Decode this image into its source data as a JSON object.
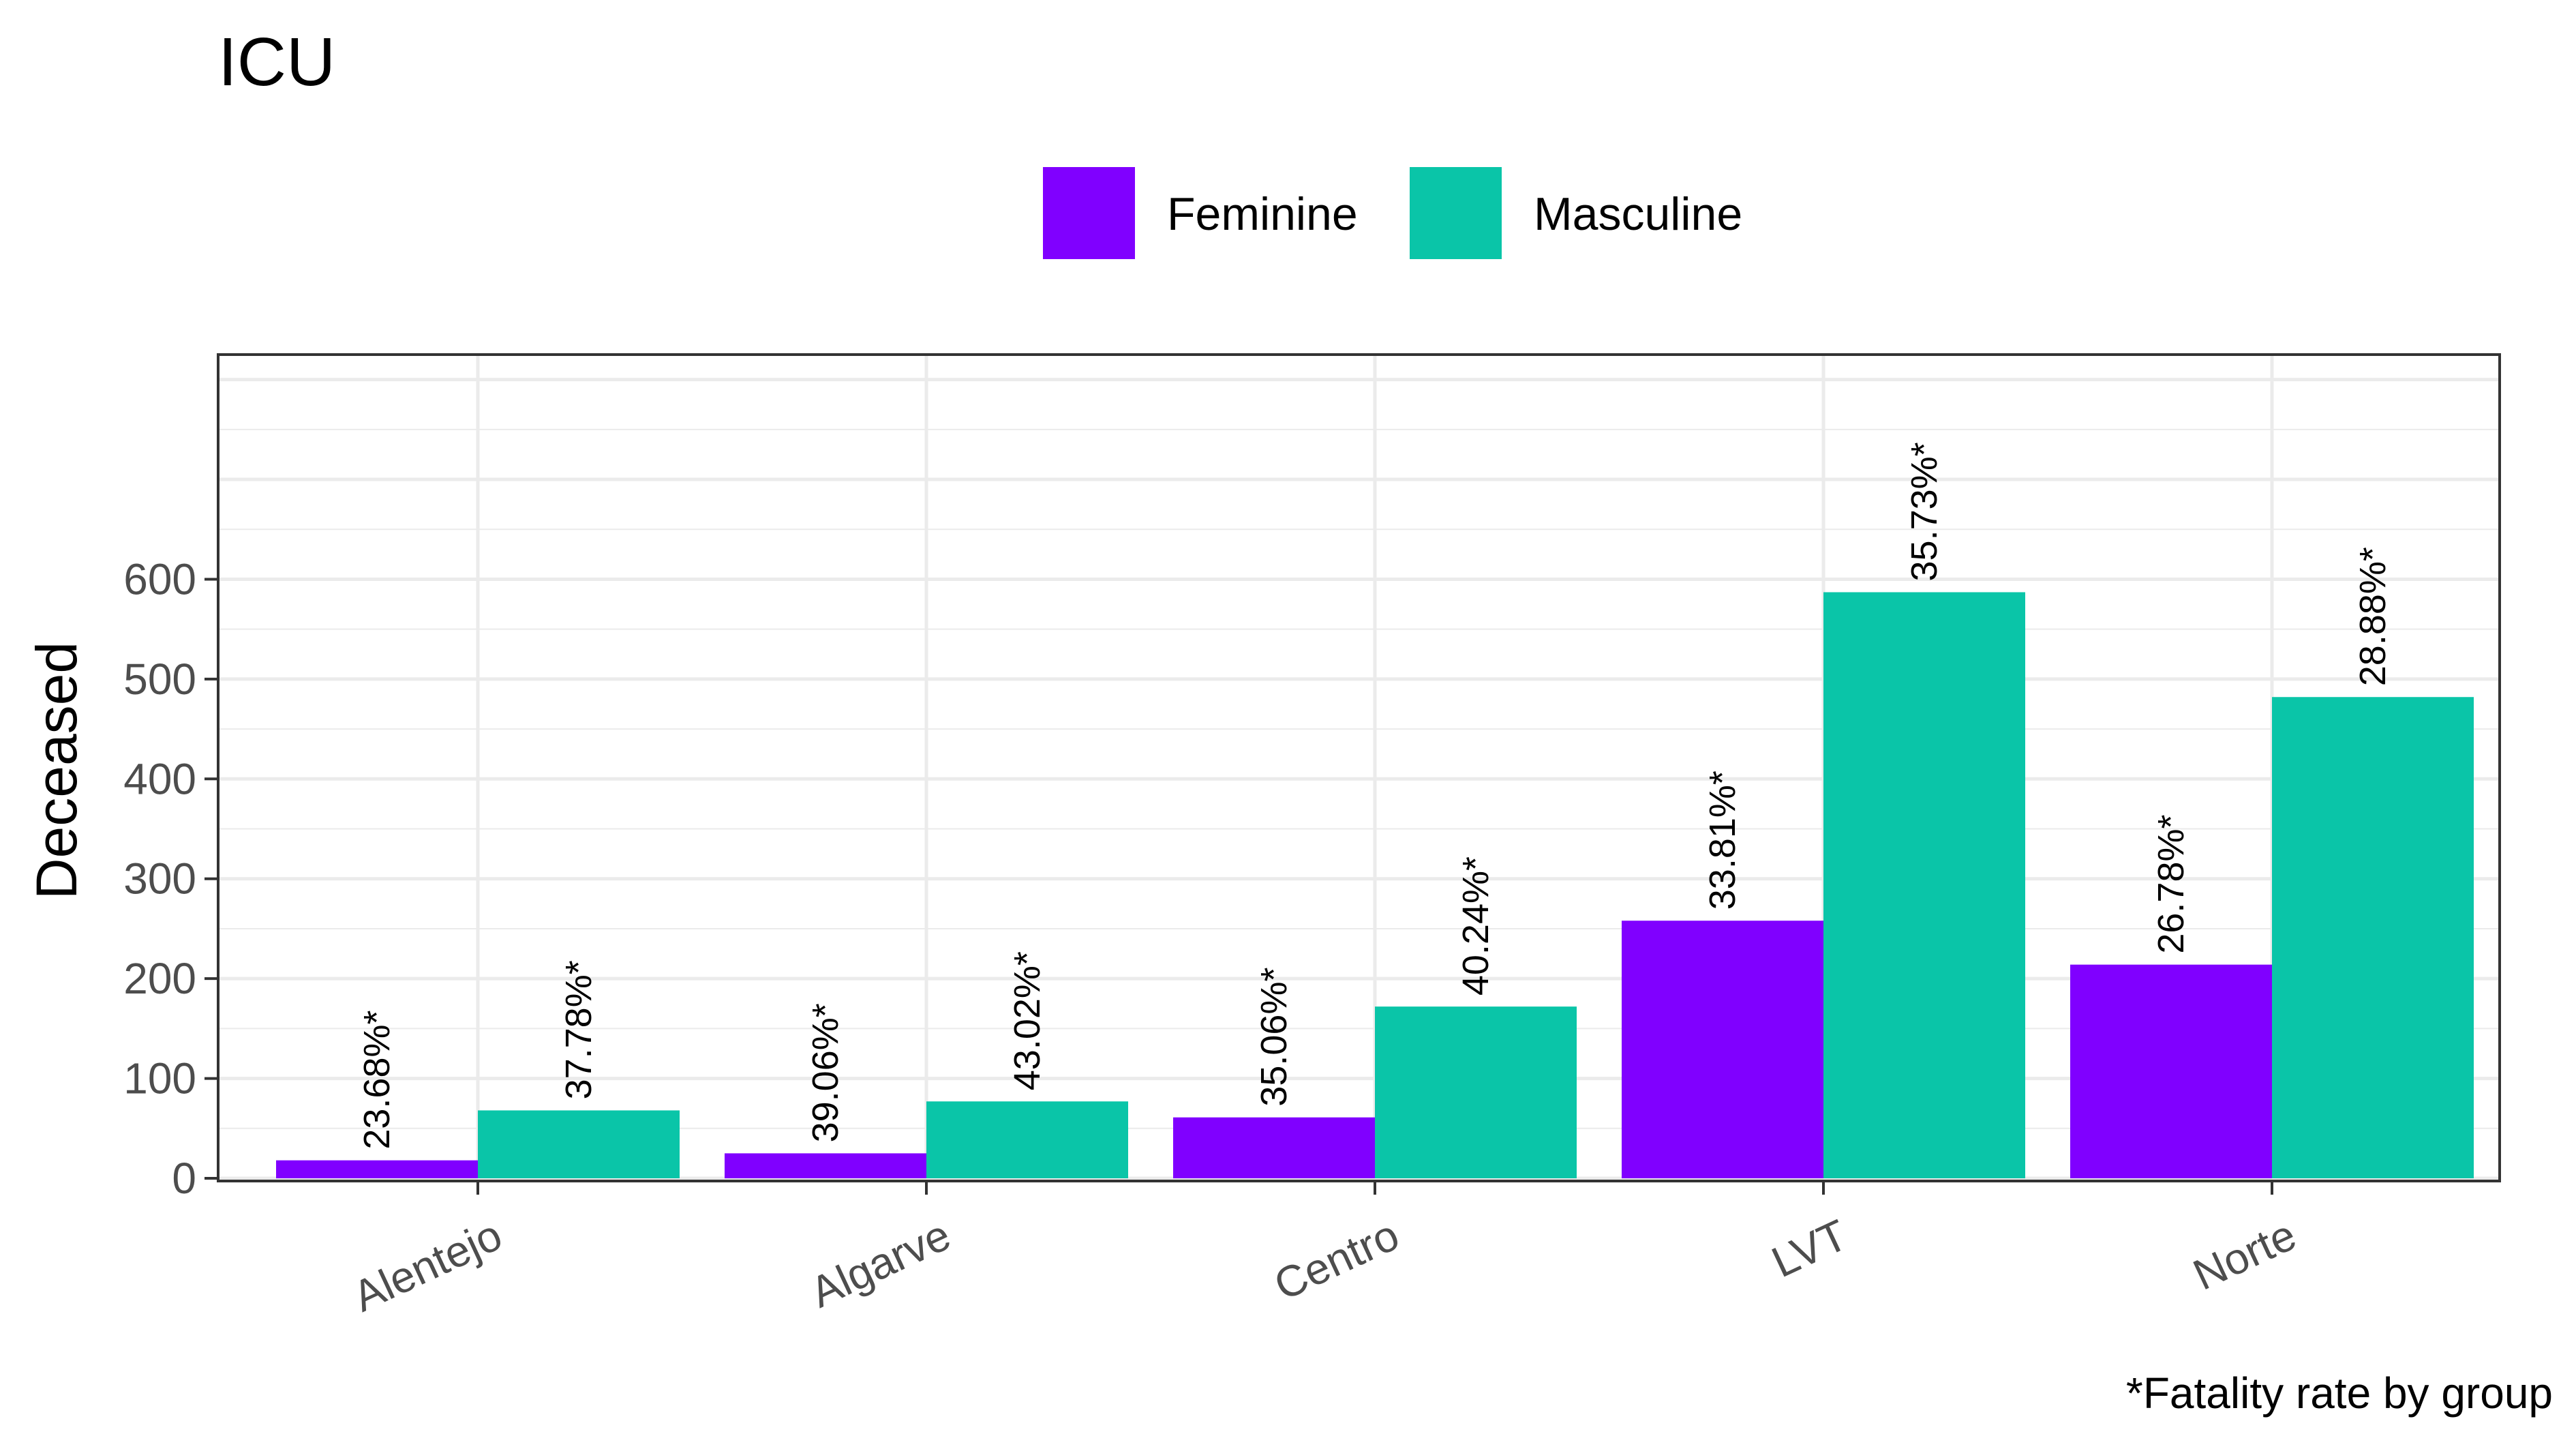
{
  "chart_data": {
    "type": "bar",
    "title": "ICU",
    "ylabel": "Deceased",
    "xlabel": "",
    "categories": [
      "Alentejo",
      "Algarve",
      "Centro",
      "LVT",
      "Norte"
    ],
    "series": [
      {
        "name": "Feminine",
        "color": "#8000ff",
        "values": [
          18,
          25,
          61,
          258,
          214
        ],
        "labels": [
          "23.68%*",
          "39.06%*",
          "35.06%*",
          "33.81%*",
          "26.78%*"
        ]
      },
      {
        "name": "Masculine",
        "color": "#0ac5a8",
        "values": [
          68,
          77,
          172,
          587,
          482
        ],
        "labels": [
          "37.78%*",
          "43.02%*",
          "40.24%*",
          "35.73%*",
          "28.88%*"
        ]
      }
    ],
    "yticks": [
      "0",
      "100",
      "200",
      "300",
      "400",
      "500",
      "600"
    ],
    "ylim": [
      0,
      825
    ],
    "grid": true,
    "legend_position": "top",
    "caption": "*Fatality rate by group"
  }
}
